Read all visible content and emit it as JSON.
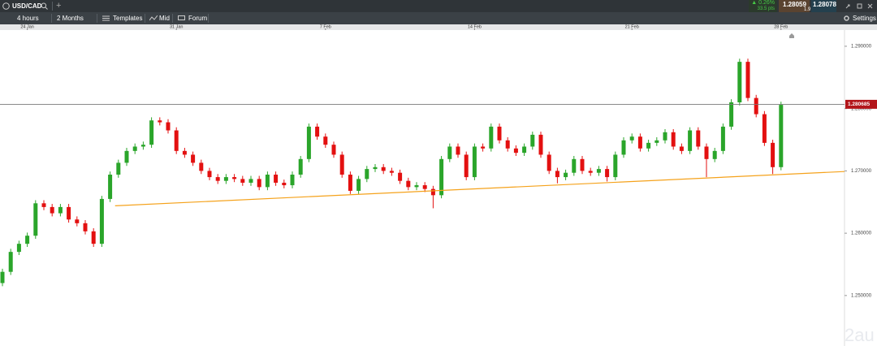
{
  "tab": {
    "symbol": "USD/CAD",
    "add": "+"
  },
  "quote": {
    "change": "▲ 0.26%",
    "points": "33.5 pts",
    "sell": "1.28059",
    "spread": "1.9",
    "buy": "1.28078"
  },
  "toolbar": {
    "interval": "4 hours",
    "range": "2 Months",
    "templates": "Templates",
    "price_type": "Mid",
    "forum": "Forum",
    "settings": "Settings"
  },
  "watermark": "2au",
  "chart_data": {
    "type": "candlestick",
    "categories": [
      null,
      null,
      null,
      null,
      null,
      null,
      null,
      null,
      null,
      null,
      null,
      null,
      null,
      null,
      null,
      null,
      null,
      null,
      null,
      null,
      null,
      null,
      null,
      null,
      null,
      null,
      null,
      null,
      null,
      null,
      null,
      null,
      null,
      null,
      null,
      null,
      null,
      null,
      null,
      null,
      null,
      null,
      null,
      null,
      null,
      null,
      null,
      null,
      null,
      null,
      null,
      null,
      null,
      null,
      null,
      null,
      null,
      null,
      null,
      null,
      null,
      null,
      null,
      null,
      null,
      null,
      null,
      null,
      null,
      null,
      null,
      null,
      null,
      null,
      null,
      null,
      null,
      null,
      null,
      null,
      null,
      null,
      null,
      null,
      null,
      null,
      null,
      null,
      null,
      null,
      null,
      null,
      null,
      null,
      null
    ],
    "open": [
      1.252,
      1.2538,
      1.257,
      1.2583,
      1.2596,
      1.2648,
      1.2642,
      1.2632,
      1.2642,
      1.2622,
      1.2616,
      1.2603,
      1.2583,
      1.2655,
      1.2694,
      1.2713,
      1.2732,
      1.2739,
      1.2742,
      1.2781,
      1.2778,
      1.2765,
      1.2732,
      1.2726,
      1.2713,
      1.27,
      1.269,
      1.2684,
      1.269,
      1.2687,
      1.2681,
      1.2687,
      1.2674,
      1.2694,
      1.2681,
      1.2677,
      1.2694,
      1.2719,
      1.2771,
      1.2755,
      1.2742,
      1.2726,
      1.2694,
      1.2668,
      1.2687,
      1.2703,
      1.2706,
      1.27,
      1.2697,
      1.2684,
      1.2674,
      1.2677,
      1.2671,
      1.2661,
      1.2719,
      1.2739,
      1.2726,
      1.269,
      1.2739,
      1.2736,
      1.2771,
      1.2749,
      1.2736,
      1.2729,
      1.2739,
      1.2758,
      1.2726,
      1.27,
      1.269,
      1.2697,
      1.2719,
      1.27,
      1.2697,
      1.2703,
      1.269,
      1.2726,
      1.2749,
      1.2755,
      1.2736,
      1.2745,
      1.2749,
      1.2762,
      1.2739,
      1.2732,
      1.2765,
      1.2739,
      1.2719,
      1.2732,
      1.2771,
      1.281,
      1.2875,
      1.2817,
      1.2791,
      1.2745,
      1.2706
    ],
    "high": [
      1.2543,
      1.2575,
      1.2588,
      1.2601,
      1.2653,
      1.2653,
      1.2647,
      1.2647,
      1.2647,
      1.2627,
      1.2621,
      1.2608,
      1.266,
      1.2699,
      1.2718,
      1.2737,
      1.2744,
      1.2747,
      1.2786,
      1.2786,
      1.2783,
      1.277,
      1.2737,
      1.2731,
      1.2718,
      1.2705,
      1.2695,
      1.2695,
      1.2695,
      1.2692,
      1.2692,
      1.2692,
      1.2699,
      1.2699,
      1.2686,
      1.2699,
      1.2724,
      1.2776,
      1.2776,
      1.276,
      1.2747,
      1.2731,
      1.2699,
      1.2692,
      1.2708,
      1.2711,
      1.2711,
      1.2705,
      1.2702,
      1.2689,
      1.2682,
      1.2682,
      1.2676,
      1.2724,
      1.2744,
      1.2744,
      1.2731,
      1.2744,
      1.2744,
      1.2776,
      1.2776,
      1.2754,
      1.2741,
      1.2744,
      1.2763,
      1.2763,
      1.2731,
      1.2705,
      1.2702,
      1.2724,
      1.2724,
      1.2705,
      1.2708,
      1.2708,
      1.2731,
      1.2754,
      1.276,
      1.276,
      1.275,
      1.2754,
      1.2767,
      1.2767,
      1.2744,
      1.277,
      1.277,
      1.2744,
      1.2737,
      1.2776,
      1.2815,
      1.288,
      1.288,
      1.2822,
      1.2796,
      1.275,
      1.2811
    ],
    "low": [
      1.2515,
      1.2533,
      1.2565,
      1.2578,
      1.2591,
      1.2637,
      1.2627,
      1.2627,
      1.2617,
      1.2611,
      1.2598,
      1.2578,
      1.2578,
      1.265,
      1.2689,
      1.2708,
      1.2727,
      1.2734,
      1.2737,
      1.2773,
      1.276,
      1.2727,
      1.2721,
      1.2708,
      1.2695,
      1.2685,
      1.2679,
      1.2679,
      1.2682,
      1.2676,
      1.2676,
      1.2669,
      1.2669,
      1.2676,
      1.2672,
      1.2672,
      1.2689,
      1.2714,
      1.275,
      1.2737,
      1.2721,
      1.2689,
      1.2663,
      1.2663,
      1.2682,
      1.2698,
      1.2695,
      1.2692,
      1.2679,
      1.2669,
      1.2669,
      1.2666,
      1.264,
      1.2656,
      1.2714,
      1.2721,
      1.2685,
      1.2685,
      1.2731,
      1.2731,
      1.2744,
      1.2731,
      1.2724,
      1.2724,
      1.2734,
      1.2721,
      1.2695,
      1.268,
      1.2685,
      1.2692,
      1.2695,
      1.2692,
      1.2692,
      1.2683,
      1.2685,
      1.2721,
      1.2744,
      1.2731,
      1.2731,
      1.274,
      1.2744,
      1.2734,
      1.2727,
      1.2727,
      1.2734,
      1.269,
      1.2714,
      1.2727,
      1.2766,
      1.2805,
      1.2812,
      1.2786,
      1.274,
      1.2695,
      1.2701
    ],
    "close": [
      1.2538,
      1.257,
      1.2583,
      1.2596,
      1.2648,
      1.2642,
      1.2632,
      1.2642,
      1.2622,
      1.2616,
      1.2603,
      1.2583,
      1.2655,
      1.2694,
      1.2713,
      1.2732,
      1.2739,
      1.2742,
      1.2781,
      1.2778,
      1.2765,
      1.2732,
      1.2726,
      1.2713,
      1.27,
      1.269,
      1.2684,
      1.269,
      1.2687,
      1.2681,
      1.2687,
      1.2674,
      1.2694,
      1.2681,
      1.2677,
      1.2694,
      1.2719,
      1.2771,
      1.2755,
      1.2742,
      1.2726,
      1.2694,
      1.2668,
      1.2687,
      1.2703,
      1.2706,
      1.27,
      1.2697,
      1.2684,
      1.2674,
      1.2677,
      1.2671,
      1.2661,
      1.2719,
      1.2739,
      1.2726,
      1.269,
      1.2739,
      1.2736,
      1.2771,
      1.2749,
      1.2736,
      1.2729,
      1.2739,
      1.2758,
      1.2726,
      1.27,
      1.269,
      1.2697,
      1.2719,
      1.27,
      1.2697,
      1.2703,
      1.269,
      1.2726,
      1.2749,
      1.2755,
      1.2736,
      1.2745,
      1.2749,
      1.2762,
      1.2739,
      1.2732,
      1.2765,
      1.2739,
      1.2719,
      1.2732,
      1.2771,
      1.281,
      1.2875,
      1.2817,
      1.2791,
      1.2745,
      1.2706,
      1.2806
    ],
    "up_color": "#2aa52a",
    "down_color": "#e31010",
    "xticks": [
      {
        "value": 3,
        "label": "24 Jan"
      },
      {
        "value": 21,
        "label": "31 Jan"
      },
      {
        "value": 39,
        "label": "7 Feb"
      },
      {
        "value": 57,
        "label": "14 Feb"
      },
      {
        "value": 76,
        "label": "21 Feb"
      },
      {
        "value": 94,
        "label": "28 Feb"
      }
    ],
    "ylim": [
      1.2419,
      1.2926
    ],
    "yticks": [
      {
        "value": 1.25,
        "label": "1.250000"
      },
      {
        "value": 1.26,
        "label": "1.260000"
      },
      {
        "value": 1.27,
        "label": "1.270000"
      },
      {
        "value": 1.28,
        "label": "1.280000"
      },
      {
        "value": 1.29,
        "label": "1.290000"
      }
    ],
    "price_line": {
      "value": 1.280685,
      "label": "1.280685",
      "color": "#b3161b"
    },
    "trendline": {
      "x": [
        13.6,
        101.7
      ],
      "y": [
        1.2644,
        1.2699
      ],
      "color": "#f5a21b"
    }
  }
}
